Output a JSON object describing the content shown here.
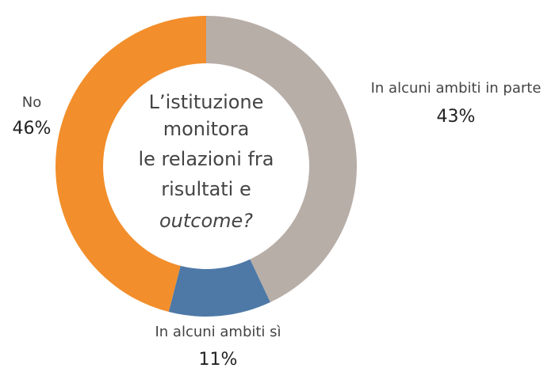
{
  "chart_data": {
    "type": "donut",
    "center_text": [
      "L’istituzione",
      "monitora",
      "le relazioni fra",
      "risultati e",
      "outcome?"
    ],
    "categories": [
      "In alcuni ambiti in parte",
      "In alcuni ambiti sì",
      "No"
    ],
    "values": [
      43,
      11,
      46
    ],
    "value_labels": [
      "43%",
      "11%",
      "46%"
    ],
    "colors": [
      "#b8aea8",
      "#4e79a7",
      "#f28e2b"
    ]
  }
}
